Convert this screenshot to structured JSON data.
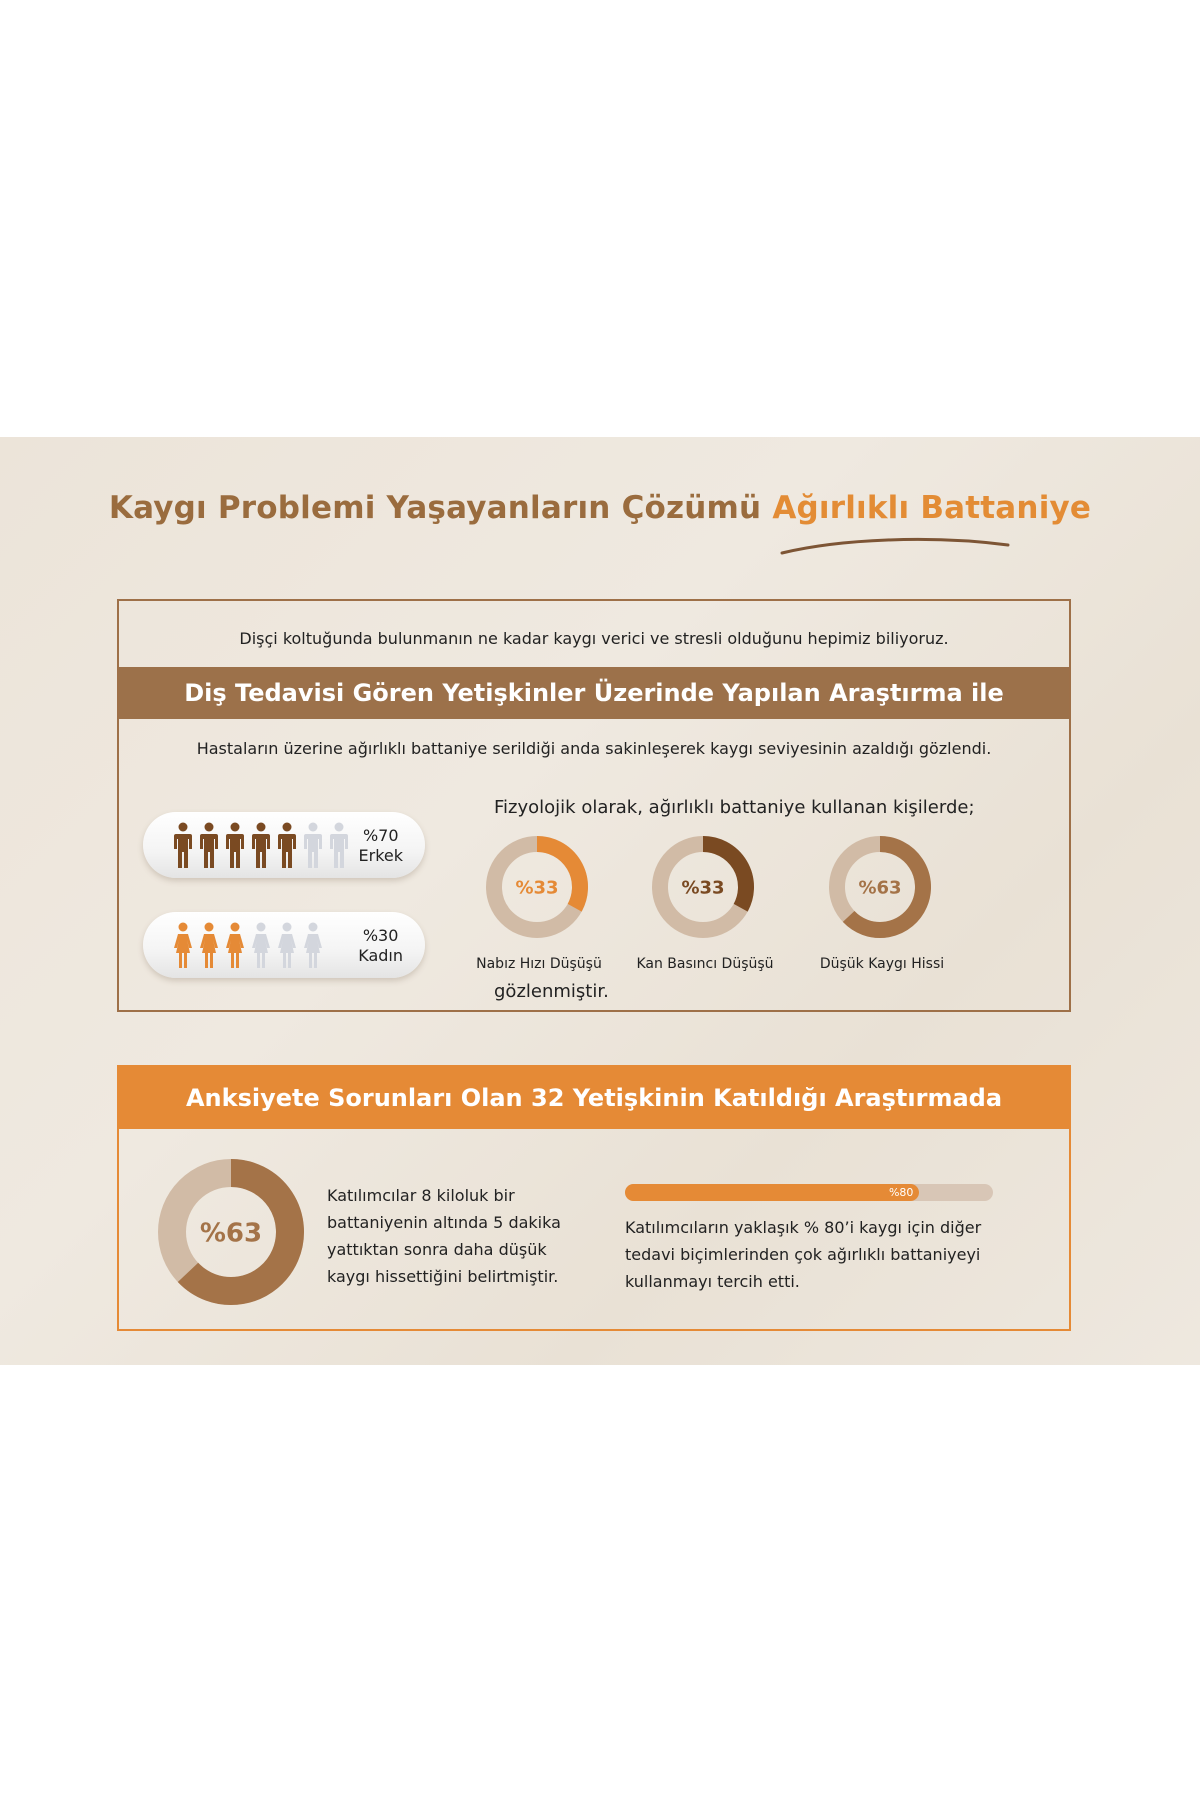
{
  "header": {
    "title_part1": "Kaygı Problemi Yaşayanların Çözümü",
    "title_part2": "Ağırlıklı Battaniye"
  },
  "colors": {
    "brown": "#9c714a",
    "orange": "#e58a36",
    "tan": "#d1bba6",
    "dark_brown": "#7a4a22",
    "grey_figure": "#d3d6dd"
  },
  "section1": {
    "intro": "Dişçi koltuğunda bulunmanın ne kadar kaygı verici ve stresli olduğunu hepimiz biliyoruz.",
    "banner": "Diş Tedavisi Gören Yetişkinler Üzerinde Yapılan Araştırma ile",
    "observation": "Hastaların üzerine ağırlıklı battaniye serildiği anda sakinleşerek kaygı seviyesinin azaldığı gözlendi.",
    "male": {
      "percent_label": "%70",
      "label": "Erkek",
      "value": 70,
      "icon": "male-figure-icon",
      "filled": 5,
      "total": 7
    },
    "female": {
      "percent_label": "%30",
      "label": "Kadın",
      "value": 30,
      "icon": "female-figure-icon",
      "filled": 3,
      "total": 6
    },
    "physiology_intro": "Fizyolojik olarak, ağırlıklı battaniye kullanan kişilerde;",
    "donuts": [
      {
        "value_label": "%33",
        "value": 33,
        "label": "Nabız Hızı Düşüşü",
        "color": "#e58a36"
      },
      {
        "value_label": "%33",
        "value": 33,
        "label": "Kan Basıncı Düşüşü",
        "color": "#7a4a22"
      },
      {
        "value_label": "%63",
        "value": 63,
        "label": "Düşük Kaygı Hissi",
        "color": "#a47348"
      }
    ],
    "closing": "gözlenmiştir."
  },
  "section2": {
    "banner": "Anksiyete Sorunları Olan 32 Yetişkinin Katıldığı Araştırmada",
    "donut": {
      "value_label": "%63",
      "value": 63,
      "color": "#a47348"
    },
    "paragraph1": "Katılımcılar  8  kiloluk bir battaniyenin altında 5 dakika yattıktan sonra daha düşük kaygı hissettiğini belirtmiştir.",
    "bar": {
      "value_label": "%80",
      "value": 80
    },
    "paragraph2": "Katılımcıların yaklaşık % 80’i kaygı için diğer tedavi biçimlerinden çok ağırlıklı battaniyeyi kullanmayı tercih etti."
  }
}
